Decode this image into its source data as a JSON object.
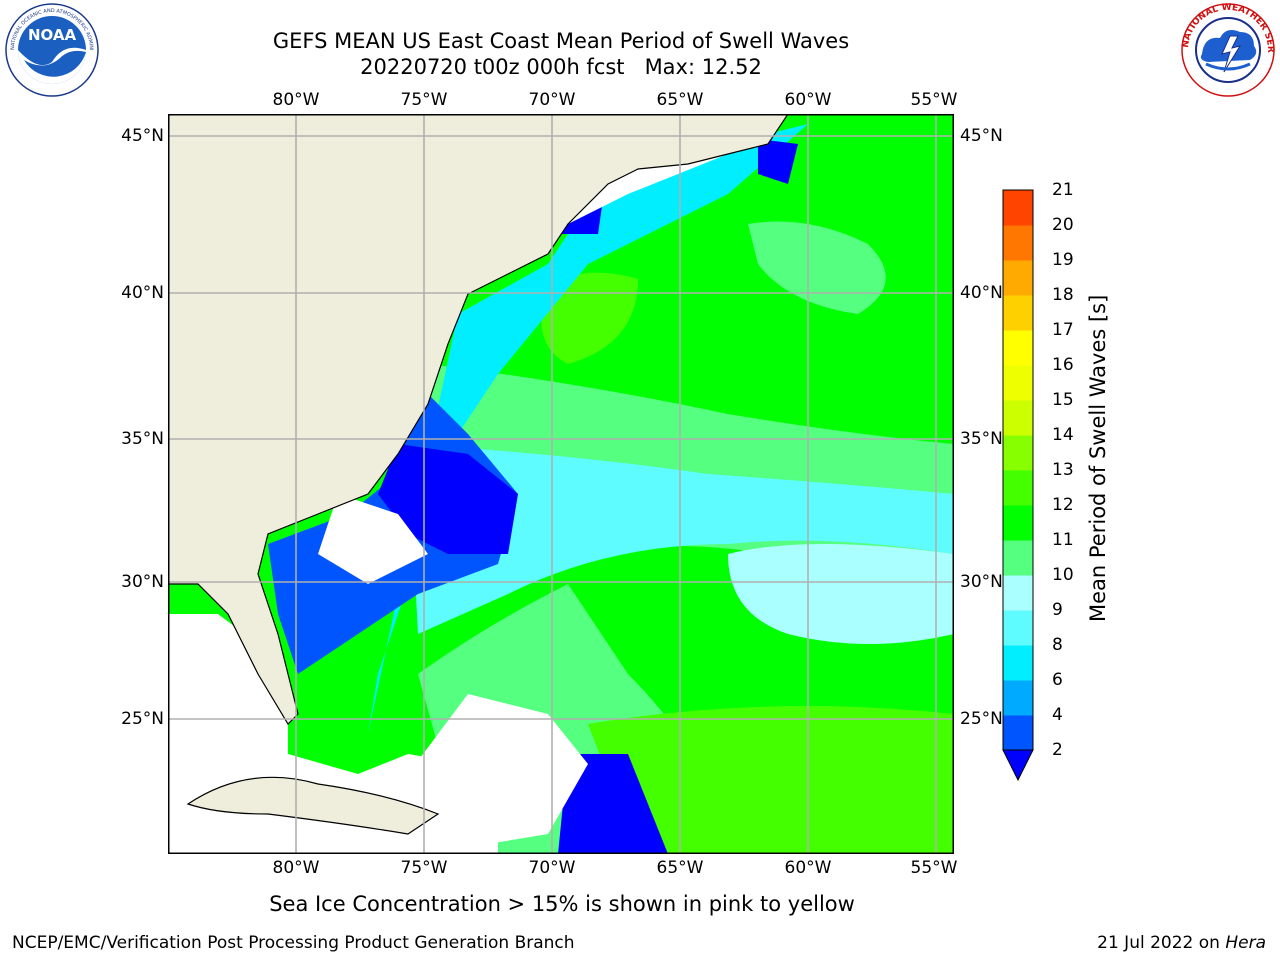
{
  "title_line1": "GEFS MEAN US East Coast Mean Period of Swell Waves",
  "title_line2": "20220720 t00z 000h fcst   Max: 12.52",
  "longitude_ticks": [
    "80°W",
    "75°W",
    "70°W",
    "65°W",
    "60°W",
    "55°W"
  ],
  "latitude_ticks": [
    "45°N",
    "40°N",
    "35°N",
    "30°N",
    "25°N"
  ],
  "colorbar": {
    "title": "Mean Period of Swell Waves [s]",
    "levels": [
      "2",
      "4",
      "6",
      "8",
      "9",
      "10",
      "11",
      "12",
      "13",
      "14",
      "15",
      "16",
      "17",
      "18",
      "19",
      "20",
      "21"
    ],
    "colors": [
      "#0000ff",
      "#0055ff",
      "#00aaff",
      "#00eeff",
      "#5ffcff",
      "#aaffff",
      "#55ff7f",
      "#00ff00",
      "#44ff00",
      "#88ff00",
      "#ccff00",
      "#eeff00",
      "#ffff00",
      "#ffd000",
      "#ffaa00",
      "#ff7700",
      "#ff4400",
      "#ff1100"
    ],
    "extend_min_color": "#0000ff"
  },
  "sea_ice_note": "Sea Ice Concentration > 15% is shown in pink to yellow",
  "footer_left": "NCEP/EMC/Verification Post Processing Product Generation Branch",
  "footer_date": "21 Jul 2022 on ",
  "footer_machine": "Hera",
  "logos": {
    "noaa": {
      "icon": "noaa-logo",
      "text": "NOAA",
      "ring_text": "NATIONAL OCEANIC AND ATMOSPHERIC ADMINISTRATION · U.S. DEPARTMENT OF COMMERCE"
    },
    "nws": {
      "icon": "nws-logo",
      "ring_text": "NATIONAL WEATHER SERVICE"
    }
  },
  "map_colors": {
    "land": "#efeddc",
    "no_data": "#ffffff",
    "grid": "#b0b0b0",
    "coast": "#000000"
  }
}
